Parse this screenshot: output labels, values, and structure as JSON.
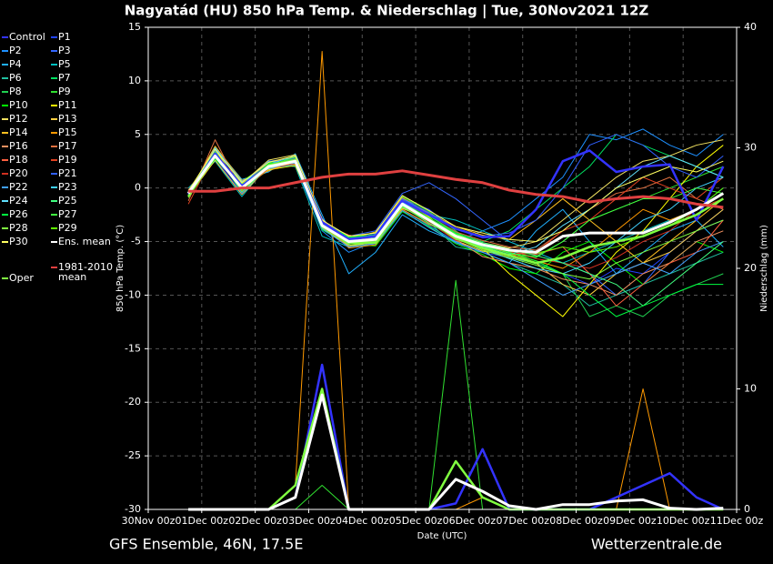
{
  "chart_data": {
    "type": "line",
    "title": "Nagyatád  (HU)  850 hPa Temp. & Niederschlag | Tue, 30Nov2021 12Z",
    "ylabel": "850 hPa Temp. (°C)",
    "y2label": "Niederschlag (mm)",
    "xlabel": "Date (UTC)",
    "footer_left": "GFS Ensemble, 46N, 17.5E",
    "footer_right": "Wetterzentrale.de",
    "grid": true,
    "xlim": [
      0,
      11
    ],
    "xticks": [
      {
        "value": 0,
        "label": "30Nov 00z"
      },
      {
        "value": 1,
        "label": "01Dec 00z"
      },
      {
        "value": 2,
        "label": "02Dec 00z"
      },
      {
        "value": 3,
        "label": "03Dec 00z"
      },
      {
        "value": 4,
        "label": "04Dec 00z"
      },
      {
        "value": 5,
        "label": "05Dec 00z"
      },
      {
        "value": 6,
        "label": "06Dec 00z"
      },
      {
        "value": 7,
        "label": "07Dec 00z"
      },
      {
        "value": 8,
        "label": "08Dec 00z"
      },
      {
        "value": 9,
        "label": "09Dec 00z"
      },
      {
        "value": 10,
        "label": "10Dec 00z"
      },
      {
        "value": 11,
        "label": "11Dec 00z"
      }
    ],
    "ylim": [
      -30,
      15
    ],
    "yticks": [
      -30,
      -25,
      -20,
      -15,
      -10,
      -5,
      0,
      5,
      10,
      15
    ],
    "y2lim": [
      0,
      40
    ],
    "y2ticks": [
      0,
      10,
      20,
      30,
      40
    ],
    "x": [
      0.75,
      1.25,
      1.75,
      2.25,
      2.75,
      3.25,
      3.75,
      4.25,
      4.75,
      5.25,
      5.75,
      6.25,
      6.75,
      7.25,
      7.75,
      8.25,
      8.75,
      9.25,
      9.75,
      10.25,
      10.75
    ],
    "series": [
      {
        "name": "Control",
        "color": "#3333ff",
        "values": [
          -0.6,
          3.2,
          0.2,
          2.1,
          2.6,
          -3.2,
          -4.8,
          -4.5,
          -1.2,
          -2.5,
          -3.8,
          -4.6,
          -4.5,
          -2,
          2.5,
          3.5,
          1.5,
          2,
          2.2,
          -3,
          2
        ],
        "precip": [
          0,
          0,
          0,
          0,
          1,
          12,
          0,
          0,
          0,
          0,
          0.5,
          5,
          0,
          0,
          0,
          0,
          1,
          2,
          3,
          1,
          0
        ]
      },
      {
        "name": "P1",
        "color": "#2244ff",
        "values": [
          -0.3,
          2.8,
          -0.5,
          2.3,
          3,
          -2.8,
          -5.5,
          -5.2,
          -1,
          -2,
          -4,
          -6,
          -6.5,
          -7,
          -8,
          -9,
          -7.5,
          -8,
          -6,
          -4,
          -3
        ]
      },
      {
        "name": "P2",
        "color": "#1e90ff",
        "values": [
          -0.8,
          3.5,
          0.5,
          1.8,
          2.2,
          -4,
          -6,
          -5,
          -2,
          -3.5,
          -5,
          -4,
          -3,
          -1,
          1,
          5,
          4.5,
          5.5,
          4,
          3,
          5
        ]
      },
      {
        "name": "P3",
        "color": "#3366ff",
        "values": [
          -0.4,
          3.1,
          -0.2,
          2.5,
          2.8,
          -3,
          -4.5,
          -4,
          -0.5,
          0.5,
          -1,
          -3,
          -5,
          -6,
          -7,
          -8,
          -10,
          -9,
          -6,
          -4,
          -2
        ]
      },
      {
        "name": "P4",
        "color": "#20b0ff",
        "values": [
          -0.6,
          3.8,
          0.8,
          1.5,
          3.2,
          -2.5,
          -8,
          -6,
          -2.5,
          -4,
          -5,
          -6,
          -7,
          -4,
          -2,
          -5,
          -8,
          -6,
          -4,
          -3,
          -5.5
        ]
      },
      {
        "name": "P5",
        "color": "#00bfbf",
        "values": [
          0,
          2.5,
          -0.8,
          2.2,
          2,
          -4.5,
          -5.5,
          -5,
          -1,
          -2.5,
          -3,
          -4,
          -5,
          -6,
          -7,
          -6,
          -5,
          -4,
          -3,
          -2,
          0
        ]
      },
      {
        "name": "P6",
        "color": "#20c0a0",
        "values": [
          -0.9,
          3.3,
          0.3,
          2,
          2.7,
          -3.8,
          -5.2,
          -4.3,
          -1.8,
          -3.2,
          -5.5,
          -6,
          -7,
          -8,
          -9,
          -11,
          -10,
          -9,
          -8,
          -7,
          -6
        ]
      },
      {
        "name": "P7",
        "color": "#00e060",
        "values": [
          -0.2,
          2.9,
          0,
          2.4,
          2.3,
          -3.3,
          -4.9,
          -4.9,
          -1.3,
          -2.8,
          -4.2,
          -5,
          -4,
          -2,
          0,
          2,
          5,
          4,
          3,
          2,
          1
        ]
      },
      {
        "name": "P8",
        "color": "#20d050",
        "values": [
          -0.7,
          3,
          0.1,
          1.9,
          2.9,
          -3.6,
          -5.1,
          -4.7,
          -1.6,
          -3.1,
          -4.6,
          -5.5,
          -6,
          -7,
          -8,
          -12,
          -11,
          -12,
          -10,
          -9,
          -8
        ]
      },
      {
        "name": "P9",
        "color": "#30e030",
        "values": [
          -0.5,
          3.4,
          -0.4,
          2.1,
          2.4,
          -3.1,
          -4.6,
          -4.2,
          -0.8,
          -2.2,
          -4,
          -5.8,
          -6.2,
          -6.5,
          -5,
          -3,
          -2,
          -1,
          0,
          1,
          2
        ],
        "precip": [
          0,
          0,
          0,
          0,
          0,
          2,
          0,
          0,
          0,
          0,
          19,
          0,
          0,
          0,
          0,
          0,
          0,
          0,
          0,
          0,
          0
        ]
      },
      {
        "name": "P10",
        "color": "#00ff00",
        "values": [
          -0.6,
          2.7,
          0.6,
          2.3,
          2.6,
          -3.9,
          -5.3,
          -5.4,
          -2.2,
          -3.6,
          -5.2,
          -6.2,
          -7.5,
          -8,
          -6,
          -5,
          -7,
          -9,
          -7,
          -5,
          -6
        ]
      },
      {
        "name": "P11",
        "color": "#ffff00",
        "values": [
          -0.3,
          3.6,
          -0.1,
          1.7,
          2.1,
          -3.4,
          -4.7,
          -4.4,
          -1.1,
          -2.7,
          -4.7,
          -5.6,
          -8,
          -10,
          -12,
          -9,
          -6,
          -4,
          -1,
          2,
          4
        ]
      },
      {
        "name": "P12",
        "color": "#f0e060",
        "values": [
          -0.4,
          3.2,
          0.4,
          2.6,
          3.1,
          -2.9,
          -5,
          -4.6,
          -1.4,
          -3.3,
          -4.3,
          -5.1,
          -5.6,
          -5,
          -3,
          -1,
          1,
          2.5,
          3,
          4,
          4.5
        ]
      },
      {
        "name": "P13",
        "color": "#ffd040",
        "values": [
          -0.8,
          2.6,
          -0.6,
          2,
          2.8,
          -3.7,
          -5.4,
          -5.1,
          -1.9,
          -2.9,
          -4.9,
          -5.9,
          -6.3,
          -7,
          -9,
          -10,
          -8,
          -7,
          -6,
          -4,
          -2
        ]
      },
      {
        "name": "P14",
        "color": "#ffc020",
        "values": [
          -0.5,
          3.9,
          0.7,
          1.6,
          2.5,
          -3.5,
          -4.8,
          -4.1,
          -0.9,
          -2.4,
          -3.6,
          -4.4,
          -4.8,
          -3,
          -1,
          -3,
          -5,
          -7,
          -5,
          -3,
          -1
        ]
      },
      {
        "name": "P15",
        "color": "#ff9900",
        "values": [
          -0.7,
          3,
          0,
          2.2,
          2.2,
          -3.2,
          -5.6,
          -5.3,
          -2,
          -3.4,
          -4.4,
          -5.2,
          -6.1,
          -6.8,
          -7.5,
          -6,
          -4,
          -2,
          -3,
          -2,
          -1
        ],
        "precip": [
          0,
          0,
          0,
          0,
          2,
          38,
          0,
          0,
          0,
          0,
          0,
          1,
          0,
          0,
          0,
          0,
          0,
          10,
          0,
          0,
          0
        ]
      },
      {
        "name": "P16",
        "color": "#f09060",
        "values": [
          -0.2,
          3.3,
          0.2,
          2.4,
          2.9,
          -3.3,
          -4.4,
          -4.8,
          -1.7,
          -3,
          -4.8,
          -6.4,
          -7,
          -7.5,
          -8.5,
          -9,
          -10,
          -8,
          -7,
          -5,
          -4
        ]
      },
      {
        "name": "P17",
        "color": "#e07040",
        "values": [
          -1.2,
          4.5,
          -0.3,
          1.8,
          2.3,
          -3.6,
          -5.2,
          -4.5,
          -1.3,
          -2.6,
          -4.1,
          -4.9,
          -5.5,
          -5.8,
          -4,
          -2,
          -0.5,
          0,
          1,
          -1,
          -2
        ]
      },
      {
        "name": "P18",
        "color": "#ff6040",
        "values": [
          -0.6,
          2.8,
          0.5,
          2,
          2.7,
          -3,
          -4.9,
          -5,
          -1.5,
          -3.1,
          -4.6,
          -5.4,
          -6,
          -6.2,
          -5.5,
          -8,
          -11,
          -9,
          -7,
          -6,
          -3
        ]
      },
      {
        "name": "P19",
        "color": "#e04020",
        "values": [
          -1.5,
          3.4,
          -0.2,
          2.3,
          2.4,
          -3.7,
          -5.1,
          -4.7,
          -1.8,
          -2.8,
          -4.3,
          -5.7,
          -6.4,
          -6,
          -4,
          -3,
          -1,
          1,
          0,
          -1,
          1
        ]
      },
      {
        "name": "P20",
        "color": "#d03020",
        "values": [
          -0.4,
          3.1,
          0.1,
          1.9,
          2.6,
          -3.4,
          -5,
          -4.9,
          -1.6,
          -3.2,
          -4.9,
          -5.3,
          -5.9,
          -6.6,
          -7,
          -7.5,
          -6.5,
          -5,
          -4,
          -2,
          -1
        ]
      },
      {
        "name": "P21",
        "color": "#3060ff",
        "values": [
          -0.5,
          3.5,
          -0.5,
          2.1,
          2.8,
          -3.1,
          -4.7,
          -4.3,
          -1,
          -2.3,
          -3.8,
          -4.5,
          -4.2,
          -3,
          0,
          4,
          5,
          4,
          2,
          1,
          3
        ]
      },
      {
        "name": "P22",
        "color": "#40a0ff",
        "values": [
          -0.8,
          3,
          0.3,
          2.5,
          2.3,
          -3.8,
          -5.5,
          -5.2,
          -2.1,
          -3.7,
          -5.1,
          -6,
          -7,
          -8.5,
          -10,
          -9,
          -8,
          -7,
          -8,
          -6,
          -5
        ]
      },
      {
        "name": "P23",
        "color": "#40d0ff",
        "values": [
          -0.3,
          2.9,
          -0.1,
          2.2,
          3,
          -3.3,
          -4.8,
          -4.6,
          -1.3,
          -2.9,
          -4.4,
          -5.6,
          -6.6,
          -7.5,
          -8,
          -7,
          -5,
          -3,
          -2,
          0,
          1
        ]
      },
      {
        "name": "P24",
        "color": "#60e0ff",
        "values": [
          -0.6,
          3.7,
          0.6,
          1.8,
          2.5,
          -3.5,
          -5.2,
          -4.8,
          -1.5,
          -3,
          -4.5,
          -5.5,
          -6.2,
          -5.5,
          -3.5,
          -2,
          0,
          2,
          3,
          2,
          1
        ]
      },
      {
        "name": "P25",
        "color": "#40ff80",
        "values": [
          -0.7,
          3.2,
          -0.4,
          2,
          2.6,
          -3.6,
          -5.1,
          -5,
          -1.7,
          -3.3,
          -4.6,
          -5.1,
          -5.7,
          -6.3,
          -7,
          -8,
          -9,
          -11,
          -9,
          -7,
          -5
        ]
      },
      {
        "name": "P26",
        "color": "#00ff40",
        "values": [
          -0.4,
          2.7,
          0.2,
          2.3,
          2.4,
          -3.2,
          -4.6,
          -4.4,
          -1.2,
          -2.6,
          -4.2,
          -5.2,
          -6,
          -6.8,
          -8,
          -10,
          -12,
          -11,
          -10,
          -9,
          -9
        ]
      },
      {
        "name": "P27",
        "color": "#40ff40",
        "values": [
          -0.5,
          3.4,
          0,
          2.1,
          2.9,
          -3.4,
          -5,
          -4.7,
          -1.4,
          -2.8,
          -4.3,
          -5.4,
          -6.1,
          -6.4,
          -5,
          -3,
          -2,
          -1,
          -1,
          0,
          -0.5
        ]
      },
      {
        "name": "P28",
        "color": "#80ff40",
        "values": [
          -0.9,
          3.1,
          0.4,
          1.9,
          2.5,
          -3.7,
          -5.3,
          -5.1,
          -1.8,
          -3.1,
          -4.7,
          -5.8,
          -6.5,
          -7.2,
          -8,
          -8.5,
          -7,
          -6,
          -5,
          -4,
          -3
        ]
      },
      {
        "name": "P29",
        "color": "#60ff00",
        "values": [
          -0.6,
          3,
          -0.2,
          2.2,
          2.7,
          -3.5,
          -4.9,
          -4.8,
          -1.6,
          -3,
          -4.4,
          -5.3,
          -5.9,
          -6.1,
          -5.5,
          -6,
          -5.5,
          -4.5,
          -3.5,
          -2,
          0
        ]
      },
      {
        "name": "P30",
        "color": "#ffff60",
        "values": [
          -0.3,
          3.6,
          0.5,
          2.4,
          3,
          -3,
          -4.5,
          -4.2,
          -0.7,
          -2.1,
          -3.6,
          -4.2,
          -4.8,
          -5,
          -4,
          -2,
          0,
          1,
          2,
          1.5,
          2.5
        ]
      },
      {
        "name": "Ens. mean",
        "color": "#ffffff",
        "values": [
          -0.5,
          3,
          0,
          2,
          2.5,
          -3.5,
          -5,
          -4.8,
          -1.5,
          -3,
          -4.5,
          -5.3,
          -5.8,
          -6,
          -4.5,
          -4.2,
          -4.2,
          -4.2,
          -3.2,
          -2,
          -0.5
        ],
        "precip": [
          0,
          0,
          0,
          0,
          1,
          9.5,
          0,
          0,
          0,
          0,
          2.5,
          1.5,
          0.3,
          0,
          0.4,
          0.4,
          0.7,
          0.8,
          0.1,
          0,
          0.1
        ]
      },
      {
        "name": "1981-2010 mean",
        "color": "#e04040",
        "values": [
          -0.3,
          -0.3,
          0,
          0,
          0.5,
          1,
          1.3,
          1.3,
          1.6,
          1.2,
          0.8,
          0.5,
          -0.2,
          -0.6,
          -0.8,
          -1.3,
          -1,
          -0.8,
          -1,
          -1.5,
          -1.8
        ]
      },
      {
        "name": "Oper",
        "color": "#80ff40",
        "values": [
          -0.8,
          3,
          0,
          2.1,
          2.6,
          -3.5,
          -5.1,
          -5.1,
          -1.5,
          -3,
          -4.7,
          -5.6,
          -6.3,
          -7,
          -6.5,
          -5.5,
          -5,
          -4.5,
          -3.5,
          -2.5,
          -1
        ],
        "precip": [
          0,
          0,
          0,
          0,
          2,
          10,
          0,
          0,
          0,
          0,
          4,
          1,
          0,
          0,
          0,
          0,
          0,
          0,
          0,
          0,
          0
        ]
      }
    ]
  }
}
